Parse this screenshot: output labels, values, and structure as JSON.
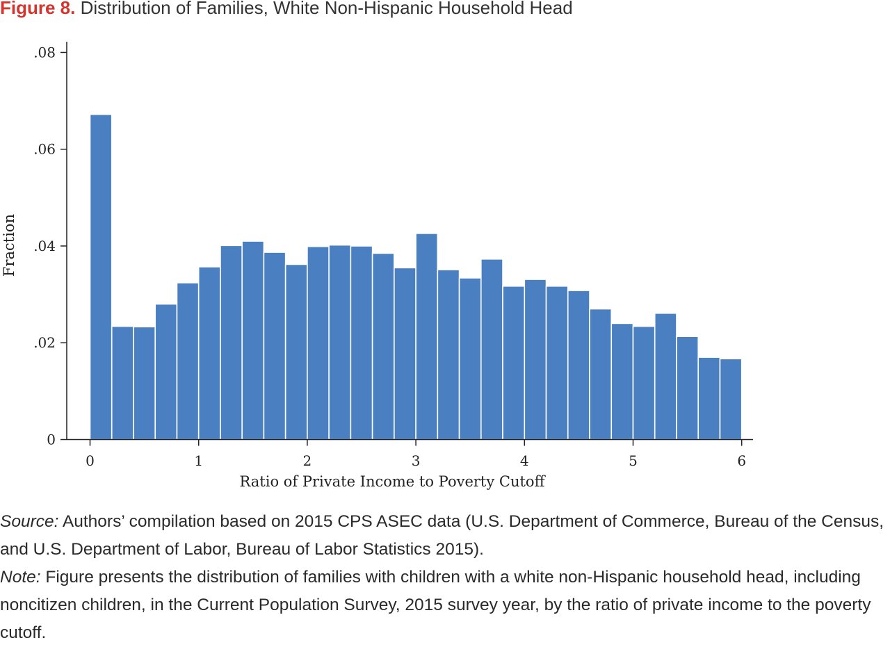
{
  "title": {
    "label": "Figure 8.",
    "text": "Distribution of Families, White Non-Hispanic Household Head"
  },
  "colors": {
    "bar": "#4a7fc1",
    "title_accent": "#d4342d"
  },
  "chart_data": {
    "type": "bar",
    "xlabel": "Ratio of Private Income to Poverty Cutoff",
    "ylabel": "Fraction",
    "xlim": [
      0,
      6
    ],
    "ylim": [
      0,
      0.08
    ],
    "x_ticks": [
      0,
      1,
      2,
      3,
      4,
      5,
      6
    ],
    "x_tick_labels": [
      "0",
      "1",
      "2",
      "3",
      "4",
      "5",
      "6"
    ],
    "y_ticks": [
      0,
      0.02,
      0.04,
      0.06,
      0.08
    ],
    "y_tick_labels": [
      "0",
      ".02",
      ".04",
      ".06",
      ".08"
    ],
    "bin_width": 0.2,
    "bin_starts": [
      0,
      0.2,
      0.4,
      0.6,
      0.8,
      1.0,
      1.2,
      1.4,
      1.6,
      1.8,
      2.0,
      2.2,
      2.4,
      2.6,
      2.8,
      3.0,
      3.2,
      3.4,
      3.6,
      3.8,
      4.0,
      4.2,
      4.4,
      4.6,
      4.8,
      5.0,
      5.2,
      5.4,
      5.6,
      5.8
    ],
    "values": [
      0.0672,
      0.0234,
      0.0233,
      0.028,
      0.0324,
      0.0357,
      0.0401,
      0.041,
      0.0387,
      0.0362,
      0.0399,
      0.0402,
      0.04,
      0.0385,
      0.0355,
      0.0426,
      0.0351,
      0.0334,
      0.0373,
      0.0317,
      0.0331,
      0.0317,
      0.0308,
      0.027,
      0.024,
      0.0234,
      0.0261,
      0.0213,
      0.017,
      0.0167
    ],
    "grid": false,
    "legend": "none"
  },
  "footnotes": [
    {
      "label": "Source:",
      "text": " Authors’ compilation based on 2015 CPS ASEC data (U.S. Department of Commerce, Bureau of the Census, and U.S. Department of Labor, Bureau of Labor Statistics 2015)."
    },
    {
      "label": "Note:",
      "text": " Figure presents the distribution of families with children with a white non-Hispanic household head, including noncitizen children, in the Current Population Survey, 2015 survey year, by the ratio of private income to the poverty cutoff."
    }
  ]
}
